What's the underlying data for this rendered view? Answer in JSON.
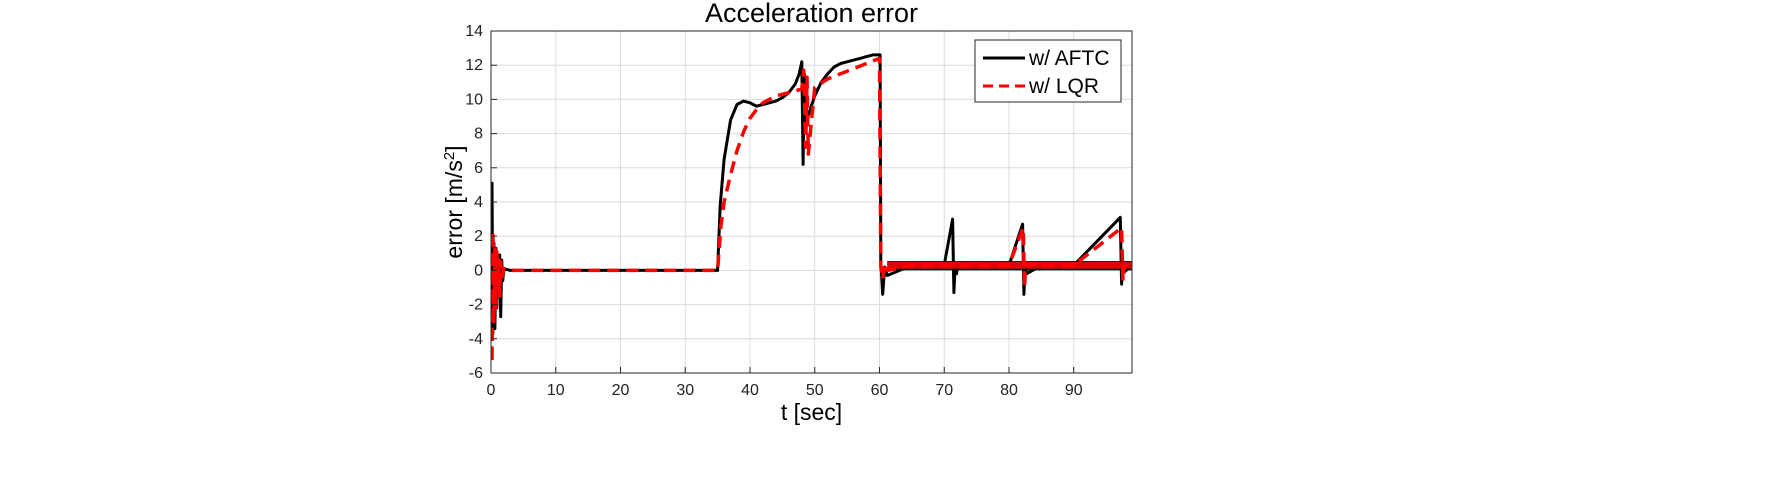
{
  "chart_data": {
    "type": "line",
    "title": "Acceleration error",
    "xlabel": "t [sec]",
    "ylabel": "error [m/s",
    "ylabel_sup": "2",
    "ylabel_end": "]",
    "xlim": [
      0,
      99
    ],
    "ylim": [
      -6,
      14
    ],
    "xticks": [
      0,
      10,
      20,
      30,
      40,
      50,
      60,
      70,
      80,
      90
    ],
    "yticks": [
      -6,
      -4,
      -2,
      0,
      2,
      4,
      6,
      8,
      10,
      12,
      14
    ],
    "grid": true,
    "legend": "top-right",
    "series": [
      {
        "name": "w/ AFTC",
        "color": "#000000",
        "dash": "solid",
        "x": [
          0,
          0.15,
          0.3,
          0.45,
          0.6,
          0.75,
          0.9,
          1.05,
          1.2,
          1.35,
          1.5,
          1.65,
          1.8,
          2.0,
          3,
          10,
          20,
          30,
          35.0,
          35.4,
          36,
          37,
          38,
          39,
          40,
          41,
          42,
          43,
          44,
          45,
          46,
          47,
          47.6,
          48.0,
          48.2,
          48.4,
          48.5,
          48.8,
          49.2,
          50,
          51,
          52,
          53,
          54,
          55,
          56,
          57,
          58,
          59,
          60.1,
          60.2,
          60.5,
          60.8,
          61.2,
          65,
          70,
          71.3,
          71.5,
          71.7,
          71.9,
          72.1,
          75,
          80,
          82.1,
          82.3,
          82.5,
          82.7,
          85,
          90,
          97.2,
          97.4,
          97.6,
          97.8,
          99
        ],
        "y": [
          0,
          5.1,
          -3.7,
          1.6,
          -3.4,
          1.3,
          -2.2,
          0.8,
          -1.4,
          0.9,
          -2.7,
          0.6,
          -0.6,
          0.1,
          0,
          0,
          0,
          0,
          0,
          3.8,
          6.5,
          8.8,
          9.7,
          9.9,
          9.8,
          9.6,
          9.7,
          9.8,
          9.9,
          10.1,
          10.4,
          10.9,
          11.5,
          12.2,
          6.2,
          11.5,
          8.5,
          8.8,
          9.3,
          10.2,
          11.0,
          11.5,
          11.9,
          12.1,
          12.2,
          12.3,
          12.4,
          12.5,
          12.6,
          12.6,
          0.5,
          -1.4,
          0.2,
          -0.3,
          0.3,
          0.3,
          3.0,
          -1.3,
          0.4,
          -0.2,
          0.3,
          0.3,
          0.3,
          2.7,
          -1.4,
          0.4,
          -0.2,
          0.3,
          0.3,
          3.1,
          -0.8,
          0.4,
          -0.1,
          0.3
        ]
      },
      {
        "name": "w/ LQR",
        "color": "#ff0000",
        "dash": "dashed",
        "x": [
          0,
          0.15,
          0.3,
          0.45,
          0.6,
          0.75,
          0.9,
          1.05,
          1.2,
          1.35,
          1.5,
          1.7,
          2.0,
          3,
          10,
          20,
          30,
          35.0,
          35.5,
          36,
          37,
          38,
          39,
          40,
          41,
          42,
          43,
          44,
          45,
          46,
          47,
          48.0,
          48.3,
          48.6,
          48.8,
          49.0,
          50,
          52,
          54,
          56,
          58,
          60.0,
          60.2,
          60.5,
          60.8,
          61.2,
          65,
          70,
          75,
          80,
          82.2,
          82.4,
          82.6,
          85,
          90,
          97.4,
          97.6,
          97.8,
          99
        ],
        "y": [
          0,
          -5.4,
          2.3,
          -3.1,
          1.5,
          -2.2,
          1.1,
          -1.1,
          0.6,
          -1.5,
          0.5,
          -0.4,
          0.1,
          0,
          0,
          0,
          0,
          0,
          2.6,
          4.0,
          5.6,
          7.0,
          8.1,
          8.9,
          9.4,
          9.8,
          10.0,
          10.2,
          10.3,
          10.4,
          10.5,
          10.6,
          11.7,
          7.2,
          11.3,
          6.8,
          10.7,
          11.2,
          11.5,
          11.8,
          12.1,
          12.4,
          0.2,
          -0.5,
          0.4,
          0.0,
          0.3,
          0.3,
          0.3,
          0.3,
          2.5,
          -1.0,
          0.4,
          0.3,
          0.3,
          2.5,
          -0.6,
          0.3,
          0.3
        ]
      }
    ]
  }
}
